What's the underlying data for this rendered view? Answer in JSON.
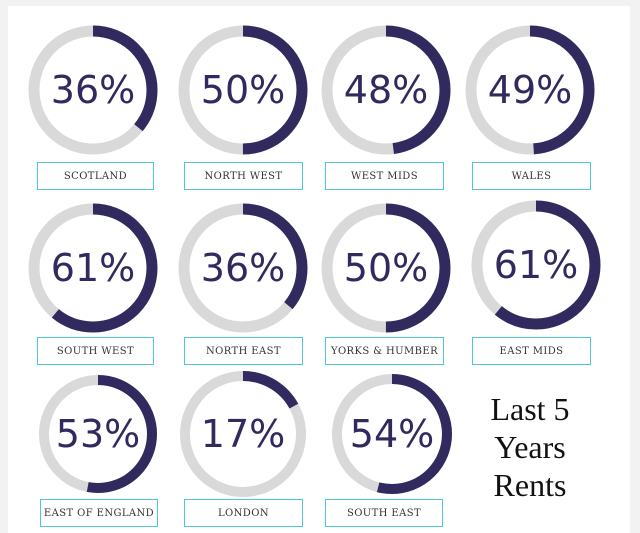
{
  "chart_data": {
    "type": "donut-grid",
    "title": "Last 5 Years Rents",
    "title_lines": [
      "Last 5",
      "Years",
      "Rents"
    ],
    "unit": "%",
    "colors": {
      "arc": "#302a5e",
      "track": "#d9d9d9",
      "label_border": "#4ecbd1"
    },
    "items": [
      {
        "region": "SCOTLAND",
        "value": 36,
        "value_label": "36%"
      },
      {
        "region": "NORTH WEST",
        "value": 50,
        "value_label": "50%"
      },
      {
        "region": "WEST MIDS",
        "value": 48,
        "value_label": "48%"
      },
      {
        "region": "WALES",
        "value": 49,
        "value_label": "49%"
      },
      {
        "region": "SOUTH WEST",
        "value": 61,
        "value_label": "61%"
      },
      {
        "region": "NORTH EAST",
        "value": 36,
        "value_label": "36%"
      },
      {
        "region": "YORKS & HUMBER",
        "value": 50,
        "value_label": "50%"
      },
      {
        "region": "EAST MIDS",
        "value": 61,
        "value_label": "61%"
      },
      {
        "region": "EAST OF ENGLAND",
        "value": 53,
        "value_label": "53%"
      },
      {
        "region": "LONDON",
        "value": 17,
        "value_label": "17%"
      },
      {
        "region": "SOUTH EAST",
        "value": 54,
        "value_label": "54%"
      }
    ]
  }
}
